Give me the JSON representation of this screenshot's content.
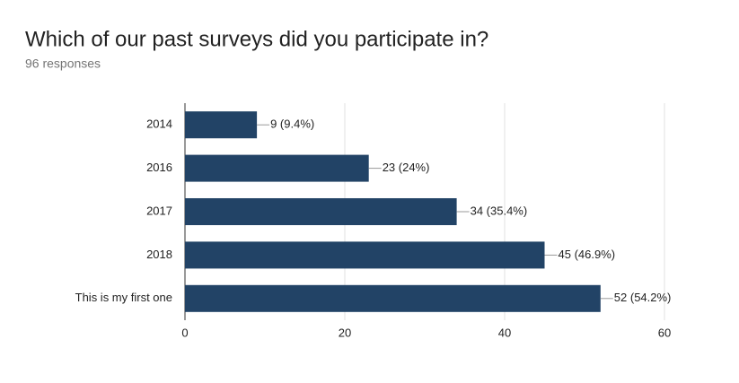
{
  "chart_data": {
    "type": "bar",
    "orientation": "horizontal",
    "title": "Which of our past surveys did you participate in?",
    "subtitle": "96 responses",
    "categories": [
      "2014",
      "2016",
      "2017",
      "2018",
      "This is my first one"
    ],
    "values": [
      9,
      23,
      34,
      45,
      52
    ],
    "value_labels": [
      "9 (9.4%)",
      "23 (24%)",
      "34 (35.4%)",
      "45 (46.9%)",
      "52 (54.2%)"
    ],
    "color": "#224366",
    "xlim": [
      0,
      60
    ],
    "xticks": [
      0,
      20,
      40,
      60
    ],
    "grid": true
  }
}
